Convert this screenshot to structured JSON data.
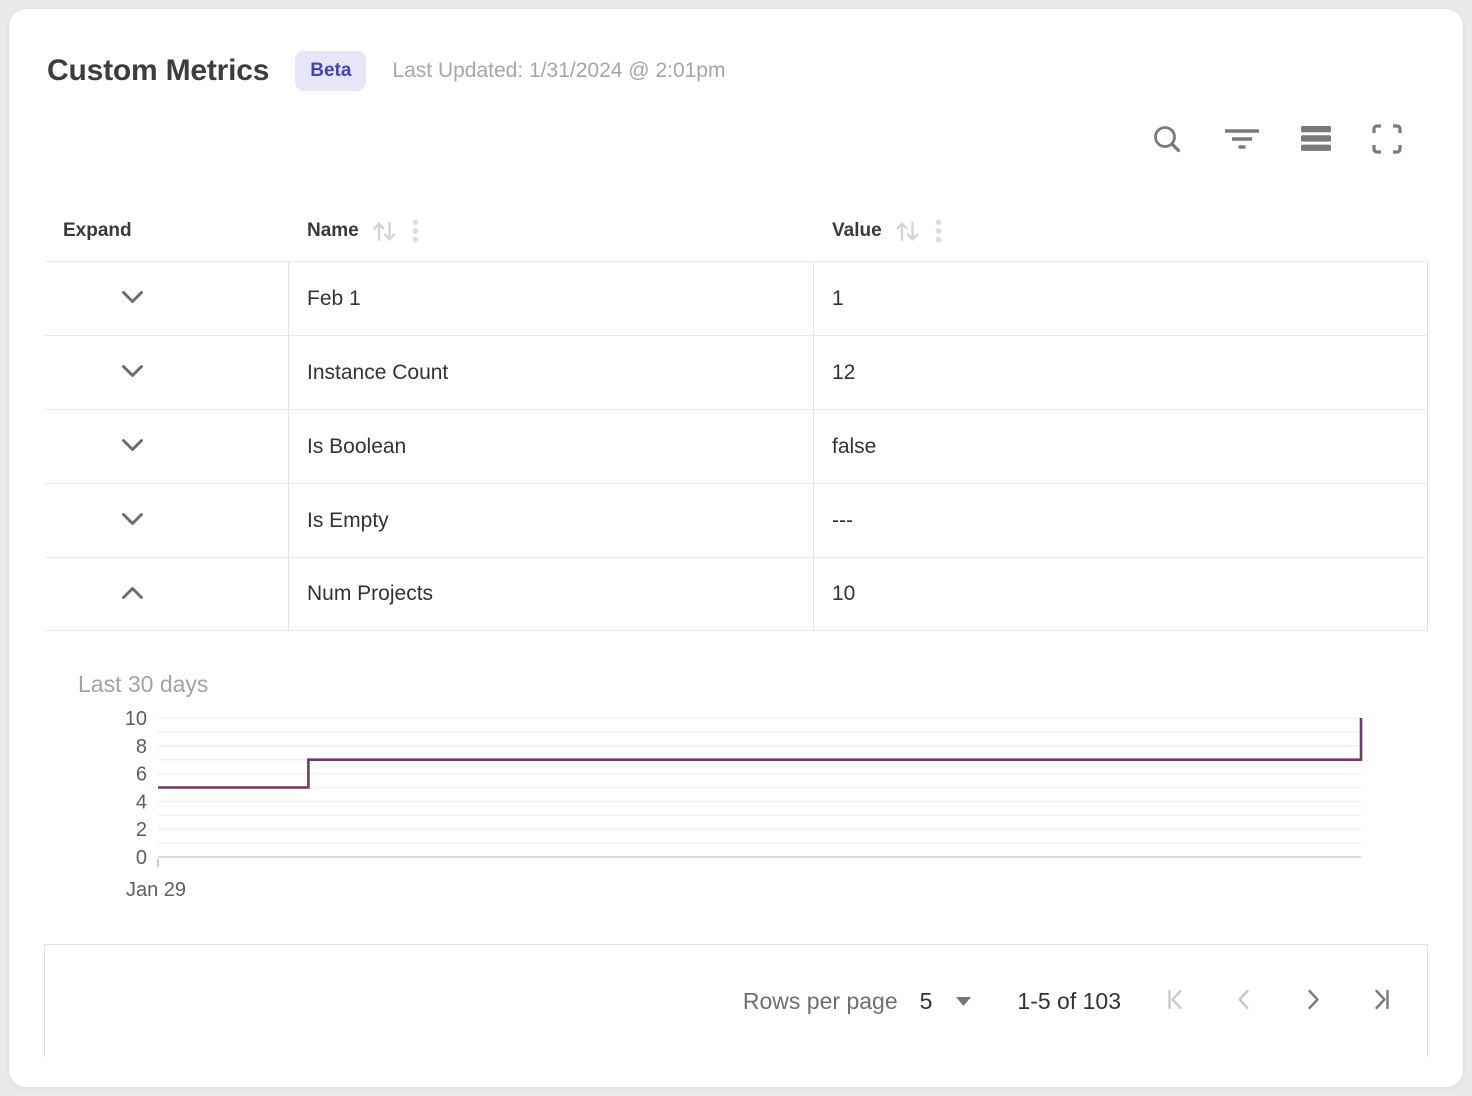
{
  "header": {
    "title": "Custom Metrics",
    "badge": "Beta",
    "last_updated": "Last Updated: 1/31/2024 @ 2:01pm"
  },
  "toolbar": {
    "icons": [
      "search",
      "filter",
      "density",
      "fullscreen"
    ]
  },
  "table": {
    "columns": [
      {
        "key": "expand",
        "label": "Expand",
        "sortable": false
      },
      {
        "key": "name",
        "label": "Name",
        "sortable": true
      },
      {
        "key": "value",
        "label": "Value",
        "sortable": true
      }
    ],
    "rows": [
      {
        "name": "Feb 1",
        "value": "1",
        "expanded": false
      },
      {
        "name": "Instance Count",
        "value": "12",
        "expanded": false
      },
      {
        "name": "Is Boolean",
        "value": "false",
        "expanded": false
      },
      {
        "name": "Is Empty",
        "value": "---",
        "expanded": false
      },
      {
        "name": "Num Projects",
        "value": "10",
        "expanded": true
      }
    ]
  },
  "chart_data": {
    "type": "line",
    "subtype": "step",
    "title": "Last 30 days",
    "xlabel": "",
    "ylabel": "",
    "xlim": [
      0,
      30
    ],
    "ylim": [
      0,
      10
    ],
    "y_ticks": [
      0,
      2,
      4,
      6,
      8,
      10
    ],
    "grid_step": 1,
    "grid": "on",
    "legend": "none",
    "x_tick_labels": [
      {
        "x": 0,
        "label": "Jan 29"
      }
    ],
    "points": [
      [
        0,
        5
      ],
      [
        3.75,
        5
      ],
      [
        3.75,
        7
      ],
      [
        30,
        7
      ],
      [
        30,
        10
      ]
    ],
    "line_color": "#713768"
  },
  "footer": {
    "rows_per_page_label": "Rows per page",
    "rows_per_page_value": "5",
    "range_label": "1-5 of 103",
    "nav": {
      "first_disabled": true,
      "prev_disabled": true,
      "next_disabled": false,
      "last_disabled": false
    }
  },
  "colors": {
    "badge_bg": "#e7e6f9",
    "badge_text": "#4445b0",
    "chart_line": "#713768",
    "icon_gray": "#7a7a7a",
    "disabled_gray": "#c9c9c9"
  }
}
